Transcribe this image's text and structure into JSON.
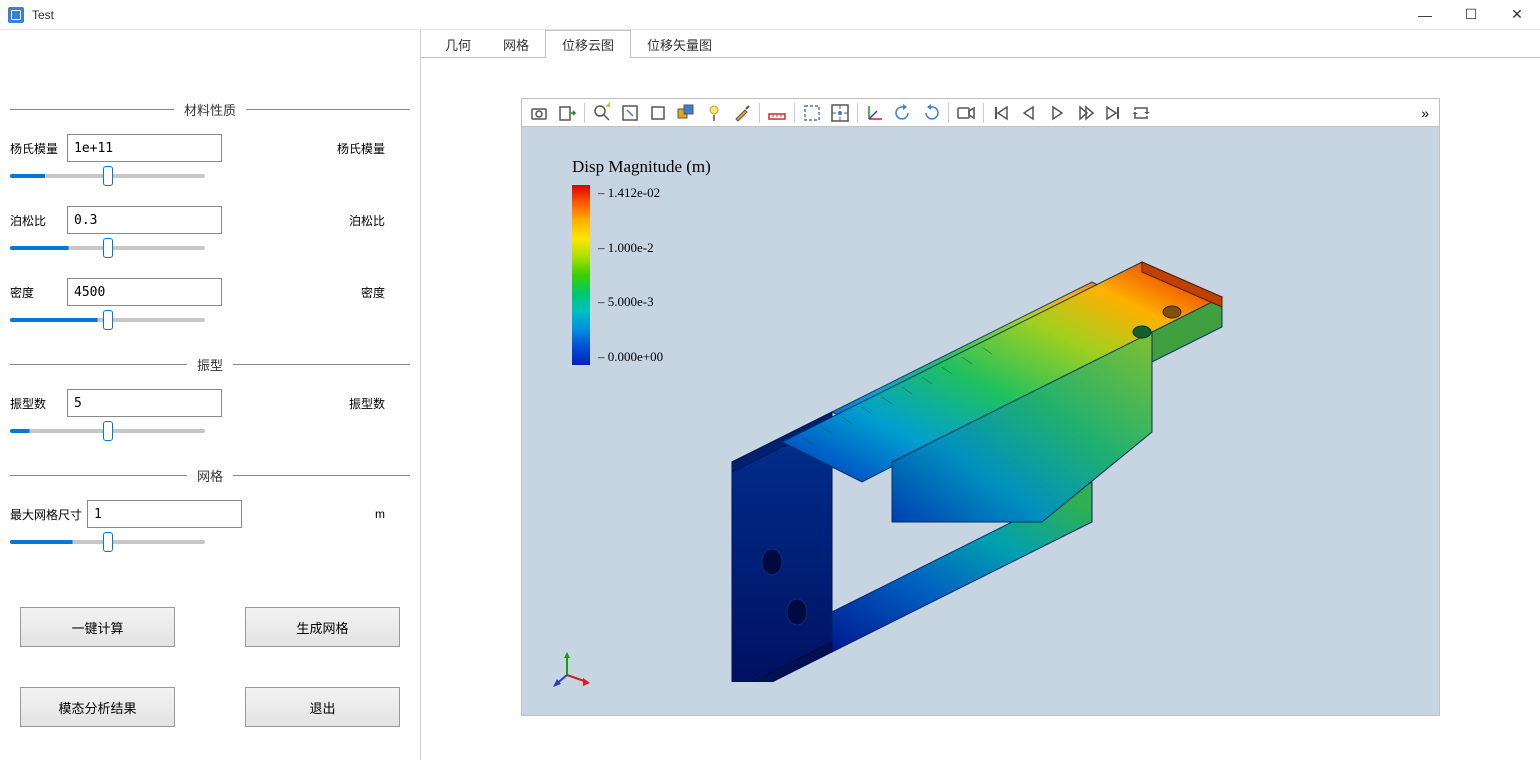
{
  "window": {
    "title": "Test"
  },
  "tabs": [
    {
      "label": "几何",
      "active": false
    },
    {
      "label": "网格",
      "active": false
    },
    {
      "label": "位移云图",
      "active": true
    },
    {
      "label": "位移矢量图",
      "active": false
    }
  ],
  "sections": {
    "material": {
      "title": "材料性质",
      "youngs": {
        "label": "杨氏模量",
        "value": "1e+11",
        "right": "杨氏模量",
        "slider_pct": 18
      },
      "poisson": {
        "label": "泊松比",
        "value": "0.3",
        "right": "泊松比",
        "slider_pct": 30
      },
      "density": {
        "label": "密度",
        "value": "4500",
        "right": "密度",
        "slider_pct": 45
      }
    },
    "mode": {
      "title": "振型",
      "count": {
        "label": "振型数",
        "value": "5",
        "right": "振型数",
        "slider_pct": 10
      }
    },
    "mesh": {
      "title": "网格",
      "maxsize": {
        "label": "最大网格尺寸",
        "value": "1",
        "right": "m",
        "slider_pct": 32
      }
    }
  },
  "buttons": {
    "compute": "一键计算",
    "genmesh": "生成网格",
    "results": "模态分析结果",
    "exit": "退出"
  },
  "toolbar_icons": [
    "camera",
    "export",
    "zoom-find",
    "box-select",
    "box",
    "boxes",
    "light",
    "brush",
    "ruler",
    "dashed-box",
    "target",
    "axes",
    "rotate-ccw",
    "rotate-cw",
    "video",
    "skip-start",
    "step-back",
    "play",
    "step-fwd",
    "skip-end",
    "loop"
  ],
  "toolbar_separators_after": [
    1,
    7,
    8,
    10,
    13,
    14
  ],
  "legend": {
    "title": "Disp Magnitude (m)",
    "max": "1.412e-02",
    "mid1": "1.000e-2",
    "mid2": "5.000e-3",
    "min": "0.000e+00",
    "colors": {
      "top": "#d90000",
      "bottom": "#0020c0"
    }
  },
  "viewport": {
    "background": "#c7d4e2"
  }
}
